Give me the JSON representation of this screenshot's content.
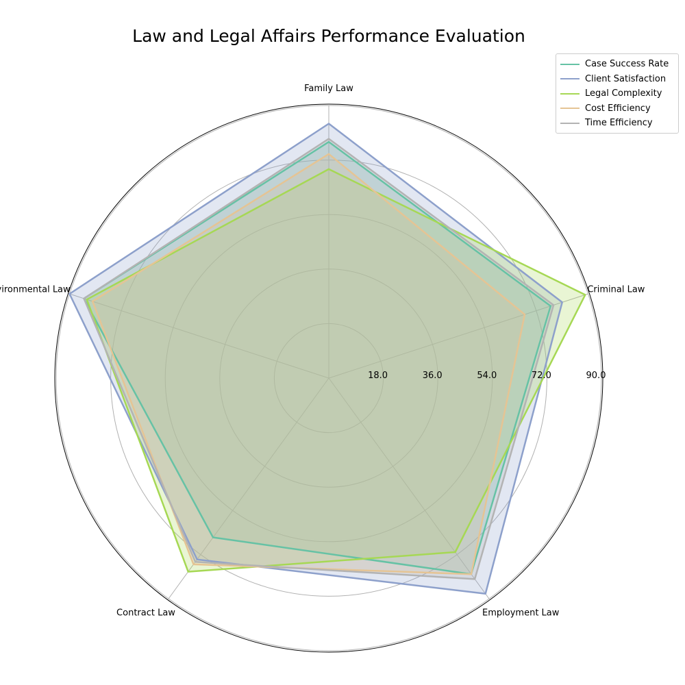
{
  "chart_data": {
    "type": "radar",
    "title": "Law and Legal Affairs Performance Evaluation",
    "categories": [
      "Family Law",
      "Criminal Law",
      "Employment Law",
      "Contract Law",
      "Environmental Law"
    ],
    "rmax": 90,
    "radial_ticks": [
      18,
      36,
      54,
      72,
      90
    ],
    "radial_tick_labels": [
      "18.0",
      "36.0",
      "54.0",
      "72.0",
      "90.0"
    ],
    "grid": true,
    "legend_position": "top-right",
    "series": [
      {
        "name": "Case Success Rate",
        "color": "#66c2a5",
        "values": [
          78,
          77,
          80,
          65,
          85
        ]
      },
      {
        "name": "Client Satisfaction",
        "color": "#8da0cb",
        "values": [
          84,
          81,
          88,
          74,
          90
        ]
      },
      {
        "name": "Legal Complexity",
        "color": "#a6d854",
        "values": [
          69,
          89,
          71,
          79,
          84
        ]
      },
      {
        "name": "Cost Efficiency",
        "color": "#e5c494",
        "values": [
          74,
          68,
          80,
          76,
          82
        ]
      },
      {
        "name": "Time Efficiency",
        "color": "#b3b3b3",
        "values": [
          79,
          78,
          82,
          75,
          85
        ]
      }
    ]
  }
}
